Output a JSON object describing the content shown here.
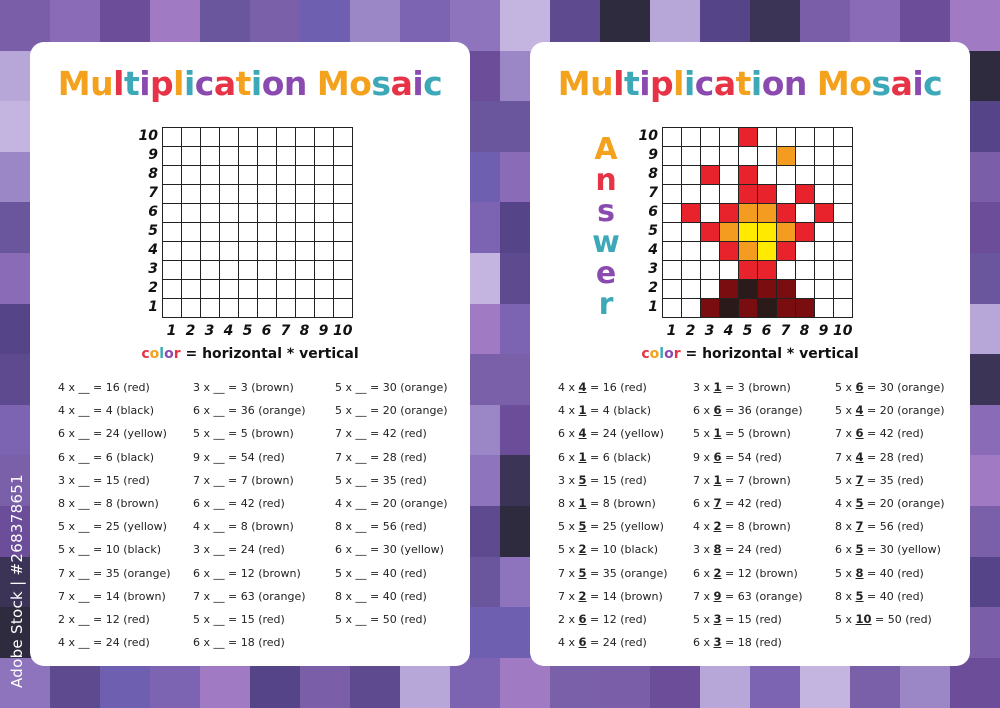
{
  "title": "Multiplication Mosaic",
  "title_colors": [
    "#f4a11d",
    "#f4a11d",
    "#e63346",
    "#3da9b8",
    "#8a4ab0",
    "#e63346",
    "#f4a11d",
    "#3da9b8",
    "#8a4ab0",
    "#e63346",
    "#f4a11d",
    "#3da9b8",
    "#8a4ab0",
    "#8a4ab0",
    "#f4a11d",
    "#f4a11d",
    "#3da9b8",
    "#e63346",
    "#8a4ab0",
    "#3da9b8",
    "#f4a11d"
  ],
  "answer_label": [
    "A",
    "n",
    "s",
    "w",
    "e",
    "r"
  ],
  "answer_colors": [
    "#f4a11d",
    "#e63346",
    "#8a4ab0",
    "#3da9b8",
    "#8a4ab0",
    "#3da9b8"
  ],
  "y_labels": [
    "10",
    "9",
    "8",
    "7",
    "6",
    "5",
    "4",
    "3",
    "2",
    "1"
  ],
  "x_labels": [
    "1",
    "2",
    "3",
    "4",
    "5",
    "6",
    "7",
    "8",
    "9",
    "10"
  ],
  "formula": {
    "color_word": [
      "c",
      "o",
      "l",
      "o",
      "r"
    ],
    "color_word_colors": [
      "#e63346",
      "#f4a11d",
      "#3da9b8",
      "#8a4ab0",
      "#e63346"
    ],
    "rest": " = horizontal * vertical"
  },
  "color_map": {
    "red": "#e8232b",
    "black": "#2a1a1a",
    "yellow": "#ffea00",
    "brown": "#7a0d10",
    "orange": "#f39c1f"
  },
  "problems": [
    [
      {
        "a": "4",
        "b": "4",
        "p": "16",
        "c": "red"
      },
      {
        "a": "4",
        "b": "1",
        "p": "4",
        "c": "black"
      },
      {
        "a": "6",
        "b": "4",
        "p": "24",
        "c": "yellow"
      },
      {
        "a": "6",
        "b": "1",
        "p": "6",
        "c": "black"
      },
      {
        "a": "3",
        "b": "5",
        "p": "15",
        "c": "red"
      },
      {
        "a": "8",
        "b": "1",
        "p": "8",
        "c": "brown"
      },
      {
        "a": "5",
        "b": "5",
        "p": "25",
        "c": "yellow"
      },
      {
        "a": "5",
        "b": "2",
        "p": "10",
        "c": "black"
      },
      {
        "a": "7",
        "b": "5",
        "p": "35",
        "c": "orange"
      },
      {
        "a": "7",
        "b": "2",
        "p": "14",
        "c": "brown"
      },
      {
        "a": "2",
        "b": "6",
        "p": "12",
        "c": "red"
      },
      {
        "a": "4",
        "b": "6",
        "p": "24",
        "c": "red"
      }
    ],
    [
      {
        "a": "3",
        "b": "1",
        "p": "3",
        "c": "brown"
      },
      {
        "a": "6",
        "b": "6",
        "p": "36",
        "c": "orange"
      },
      {
        "a": "5",
        "b": "1",
        "p": "5",
        "c": "brown"
      },
      {
        "a": "9",
        "b": "6",
        "p": "54",
        "c": "red"
      },
      {
        "a": "7",
        "b": "1",
        "p": "7",
        "c": "brown"
      },
      {
        "a": "6",
        "b": "7",
        "p": "42",
        "c": "red"
      },
      {
        "a": "4",
        "b": "2",
        "p": "8",
        "c": "brown"
      },
      {
        "a": "3",
        "b": "8",
        "p": "24",
        "c": "red"
      },
      {
        "a": "6",
        "b": "2",
        "p": "12",
        "c": "brown"
      },
      {
        "a": "7",
        "b": "9",
        "p": "63",
        "c": "orange"
      },
      {
        "a": "5",
        "b": "3",
        "p": "15",
        "c": "red"
      },
      {
        "a": "6",
        "b": "3",
        "p": "18",
        "c": "red"
      }
    ],
    [
      {
        "a": "5",
        "b": "6",
        "p": "30",
        "c": "orange"
      },
      {
        "a": "5",
        "b": "4",
        "p": "20",
        "c": "orange"
      },
      {
        "a": "7",
        "b": "6",
        "p": "42",
        "c": "red"
      },
      {
        "a": "7",
        "b": "4",
        "p": "28",
        "c": "red"
      },
      {
        "a": "5",
        "b": "7",
        "p": "35",
        "c": "red"
      },
      {
        "a": "4",
        "b": "5",
        "p": "20",
        "c": "orange"
      },
      {
        "a": "8",
        "b": "7",
        "p": "56",
        "c": "red"
      },
      {
        "a": "6",
        "b": "5",
        "p": "30",
        "c": "yellow"
      },
      {
        "a": "5",
        "b": "8",
        "p": "40",
        "c": "red"
      },
      {
        "a": "8",
        "b": "5",
        "p": "40",
        "c": "red"
      },
      {
        "a": "5",
        "b": "10",
        "p": "50",
        "c": "red"
      }
    ]
  ],
  "watermark": "Adobe Stock | #268378651",
  "bg_colors": [
    "#7b5ea8",
    "#5d4a8f",
    "#6e5fb0",
    "#8a6bb8",
    "#2f2b3f",
    "#9b87c6",
    "#6c4d9a",
    "#b7a7d9",
    "#7d64b3",
    "#a07bc4",
    "#564489",
    "#8d74bd",
    "#6a569c",
    "#3c3456",
    "#c3b5e0",
    "#7a5fa9"
  ]
}
